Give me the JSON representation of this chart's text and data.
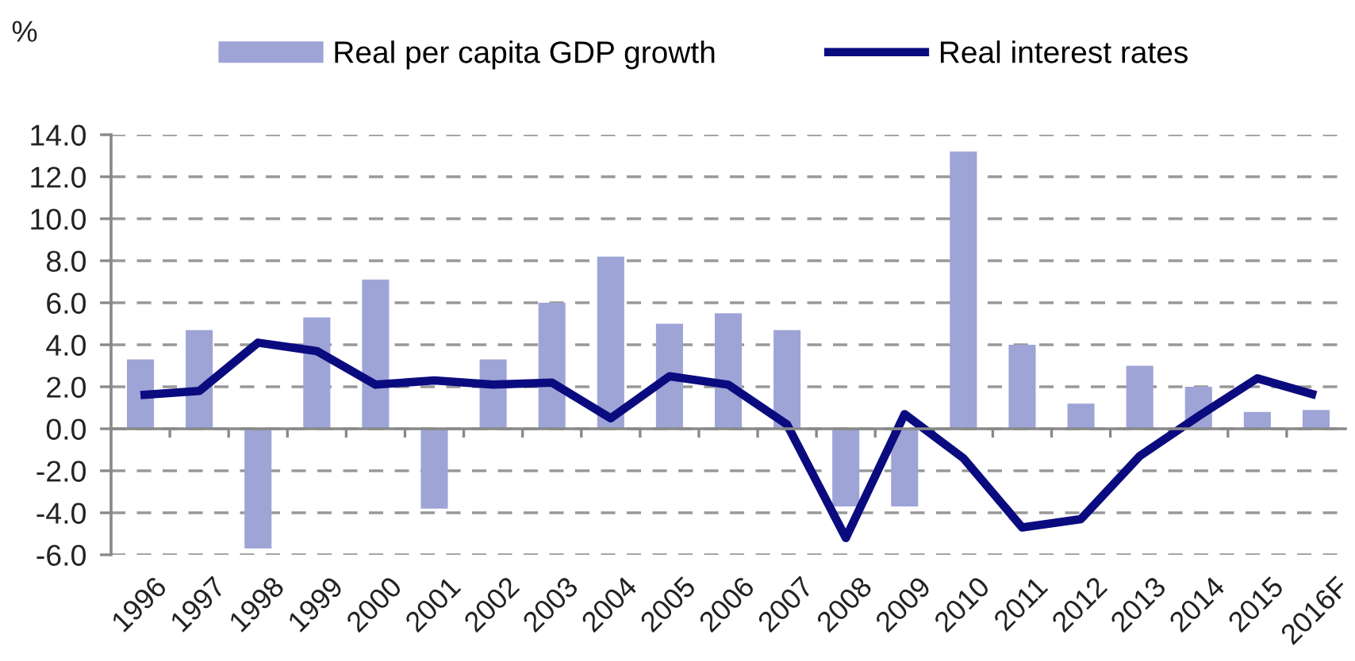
{
  "chart_data": {
    "type": "bar",
    "ylabel": "%",
    "categories": [
      "1996",
      "1997",
      "1998",
      "1999",
      "2000",
      "2001",
      "2002",
      "2003",
      "2004",
      "2005",
      "2006",
      "2007",
      "2008",
      "2009",
      "2010",
      "2011",
      "2012",
      "2013",
      "2014",
      "2015",
      "2016F"
    ],
    "series": [
      {
        "name": "Real per capita GDP growth",
        "color": "#9ea4d6",
        "values": [
          3.3,
          4.7,
          -5.7,
          5.3,
          7.1,
          -3.8,
          3.3,
          6.0,
          8.2,
          5.0,
          5.5,
          4.7,
          -3.7,
          -3.7,
          13.2,
          4.0,
          1.2,
          3.0,
          2.0,
          0.8,
          0.9
        ]
      },
      {
        "name": "Real interest rates",
        "type": "line",
        "color": "#0b0b80",
        "line_style": "solid",
        "values": [
          1.6,
          1.8,
          4.1,
          3.7,
          2.1,
          2.3,
          2.1,
          2.2,
          0.5,
          2.5,
          2.1,
          0.2,
          -5.2,
          0.7,
          -1.4,
          -4.7,
          -4.3,
          -1.3,
          0.6,
          2.4,
          1.6
        ]
      }
    ],
    "ylim": [
      -6,
      14
    ],
    "yticks": [
      {
        "value": -6,
        "label": "-6.0"
      },
      {
        "value": -4,
        "label": "-4.0"
      },
      {
        "value": -2,
        "label": "-2.0"
      },
      {
        "value": 0,
        "label": "0.0"
      },
      {
        "value": 2,
        "label": "2.0"
      },
      {
        "value": 4,
        "label": "4.0"
      },
      {
        "value": 6,
        "label": "6.0"
      },
      {
        "value": 8,
        "label": "8.0"
      },
      {
        "value": 10,
        "label": "10.0"
      },
      {
        "value": 12,
        "label": "12.0"
      },
      {
        "value": 14,
        "label": "14.0"
      }
    ],
    "grid": "y",
    "legend": "top"
  }
}
